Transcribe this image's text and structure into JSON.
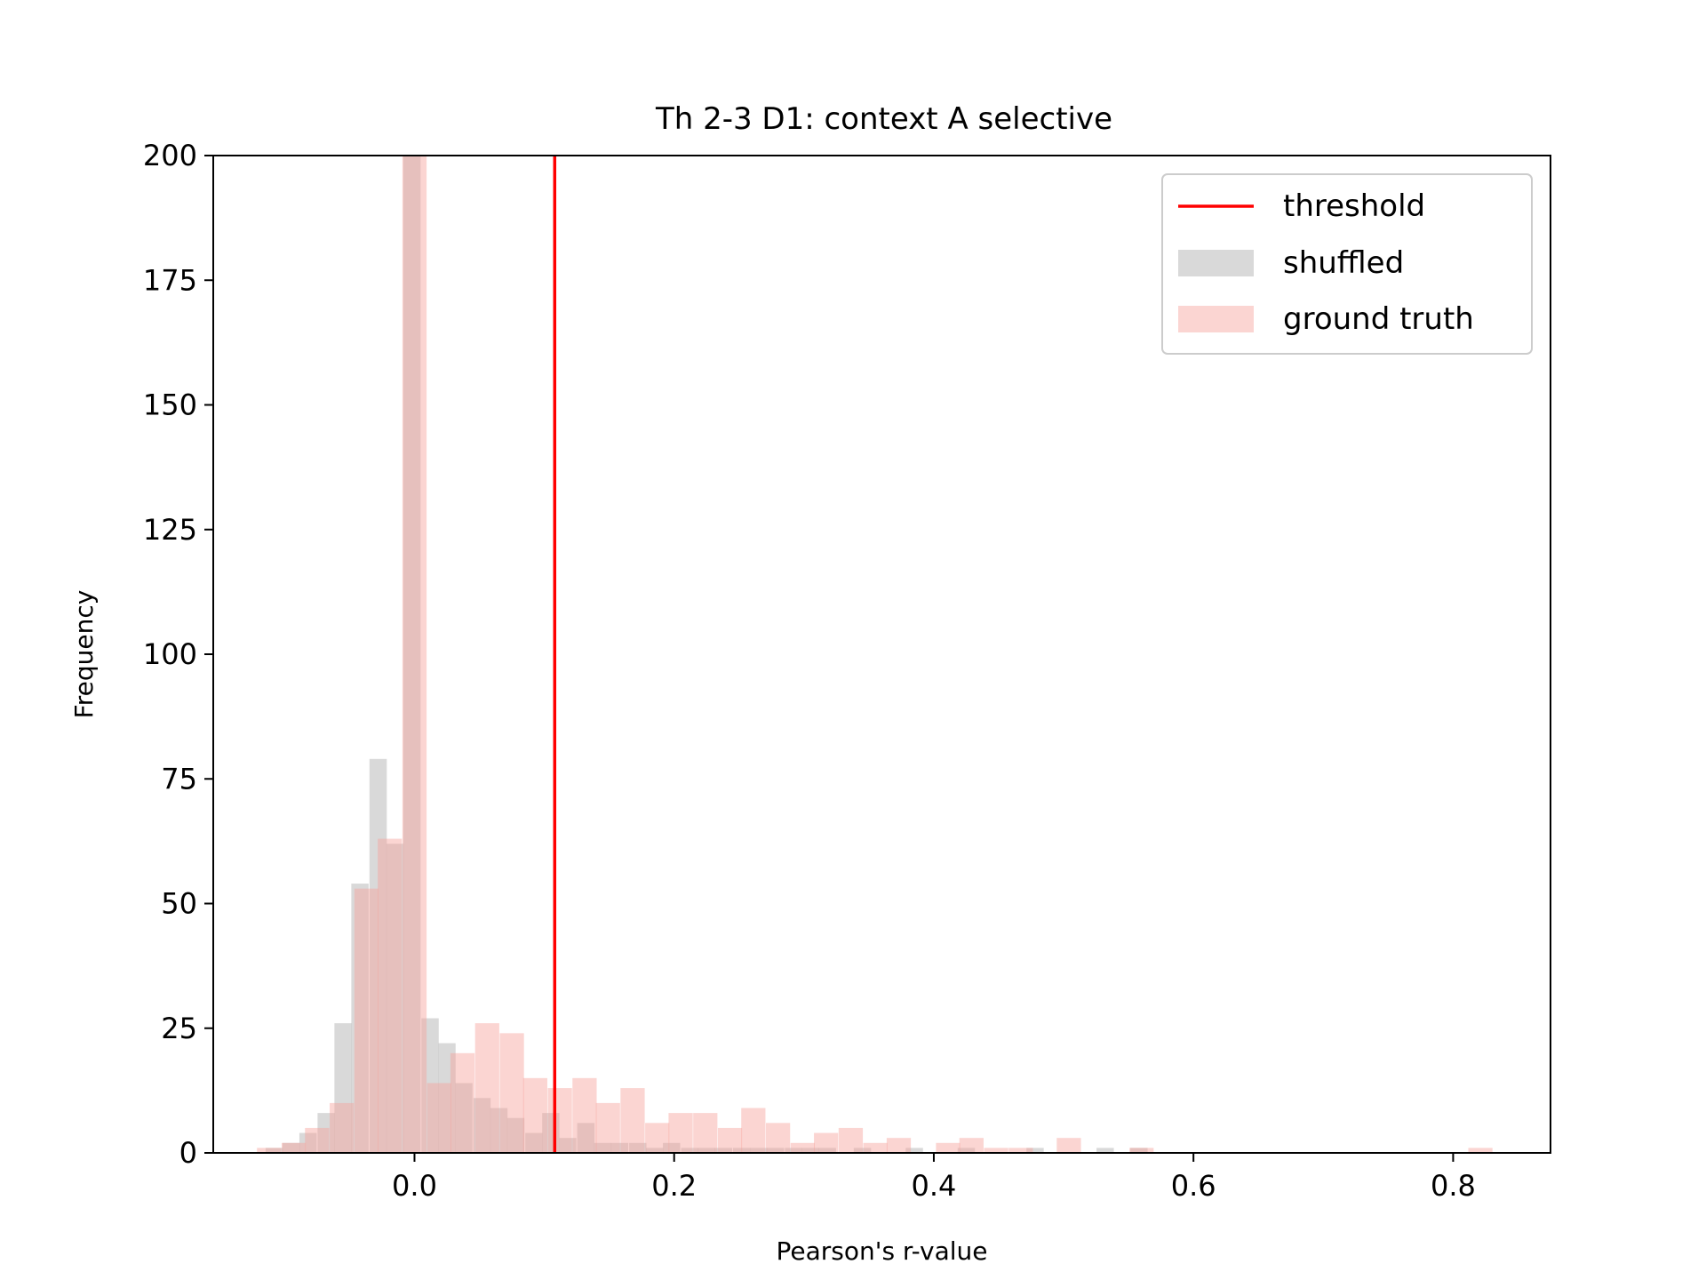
{
  "chart_data": {
    "type": "bar",
    "title": "Th 2-3 D1: context A selective",
    "xlabel": "Pearson's r-value",
    "ylabel": "Frequency",
    "xlim": [
      -0.155,
      0.875
    ],
    "ylim": [
      0,
      200
    ],
    "xticks": [
      0.0,
      0.2,
      0.4,
      0.6,
      0.8
    ],
    "xtick_labels": [
      "0.0",
      "0.2",
      "0.4",
      "0.6",
      "0.8"
    ],
    "yticks": [
      0,
      25,
      50,
      75,
      100,
      125,
      150,
      175,
      200
    ],
    "ytick_labels": [
      "0",
      "25",
      "50",
      "75",
      "100",
      "125",
      "150",
      "175",
      "200"
    ],
    "grid": false,
    "legend_position": "top-right",
    "threshold": {
      "name": "threshold",
      "x": 0.108,
      "color": "#ff0000"
    },
    "series": [
      {
        "name": "shuffled",
        "color": "#bfbfbf",
        "opacity": 0.6,
        "bin_width": 0.01333,
        "bins": [
          [
            -0.108,
            1
          ],
          [
            -0.095,
            2
          ],
          [
            -0.082,
            4
          ],
          [
            -0.068,
            8
          ],
          [
            -0.055,
            26
          ],
          [
            -0.042,
            54
          ],
          [
            -0.028,
            79
          ],
          [
            -0.015,
            62
          ],
          [
            -0.002,
            200
          ],
          [
            0.012,
            27
          ],
          [
            0.025,
            22
          ],
          [
            0.038,
            14
          ],
          [
            0.052,
            11
          ],
          [
            0.065,
            9
          ],
          [
            0.078,
            7
          ],
          [
            0.092,
            4
          ],
          [
            0.105,
            8
          ],
          [
            0.118,
            3
          ],
          [
            0.132,
            6
          ],
          [
            0.145,
            2
          ],
          [
            0.158,
            2
          ],
          [
            0.172,
            2
          ],
          [
            0.185,
            1
          ],
          [
            0.198,
            2
          ],
          [
            0.212,
            1
          ],
          [
            0.225,
            1
          ],
          [
            0.238,
            1
          ],
          [
            0.252,
            1
          ],
          [
            0.265,
            1
          ],
          [
            0.278,
            1
          ],
          [
            0.292,
            1
          ],
          [
            0.305,
            1
          ],
          [
            0.318,
            1
          ],
          [
            0.345,
            1
          ],
          [
            0.385,
            1
          ],
          [
            0.425,
            1
          ],
          [
            0.478,
            1
          ],
          [
            0.532,
            1
          ],
          [
            0.558,
            1
          ]
        ]
      },
      {
        "name": "ground truth",
        "color": "#f7a29c",
        "opacity": 0.45,
        "bin_width": 0.01864,
        "bins": [
          [
            -0.112,
            1
          ],
          [
            -0.093,
            2
          ],
          [
            -0.075,
            5
          ],
          [
            -0.056,
            10
          ],
          [
            -0.037,
            53
          ],
          [
            -0.019,
            63
          ],
          [
            0.0,
            200
          ],
          [
            0.019,
            14
          ],
          [
            0.037,
            20
          ],
          [
            0.056,
            26
          ],
          [
            0.075,
            24
          ],
          [
            0.093,
            15
          ],
          [
            0.112,
            13
          ],
          [
            0.131,
            15
          ],
          [
            0.149,
            10
          ],
          [
            0.168,
            13
          ],
          [
            0.187,
            6
          ],
          [
            0.205,
            8
          ],
          [
            0.224,
            8
          ],
          [
            0.243,
            5
          ],
          [
            0.261,
            9
          ],
          [
            0.28,
            6
          ],
          [
            0.299,
            2
          ],
          [
            0.317,
            4
          ],
          [
            0.336,
            5
          ],
          [
            0.355,
            2
          ],
          [
            0.373,
            3
          ],
          [
            0.392,
            0
          ],
          [
            0.411,
            2
          ],
          [
            0.429,
            3
          ],
          [
            0.448,
            1
          ],
          [
            0.467,
            1
          ],
          [
            0.485,
            0
          ],
          [
            0.504,
            3
          ],
          [
            0.523,
            0
          ],
          [
            0.541,
            0
          ],
          [
            0.56,
            1
          ],
          [
            0.821,
            1
          ]
        ]
      }
    ]
  }
}
